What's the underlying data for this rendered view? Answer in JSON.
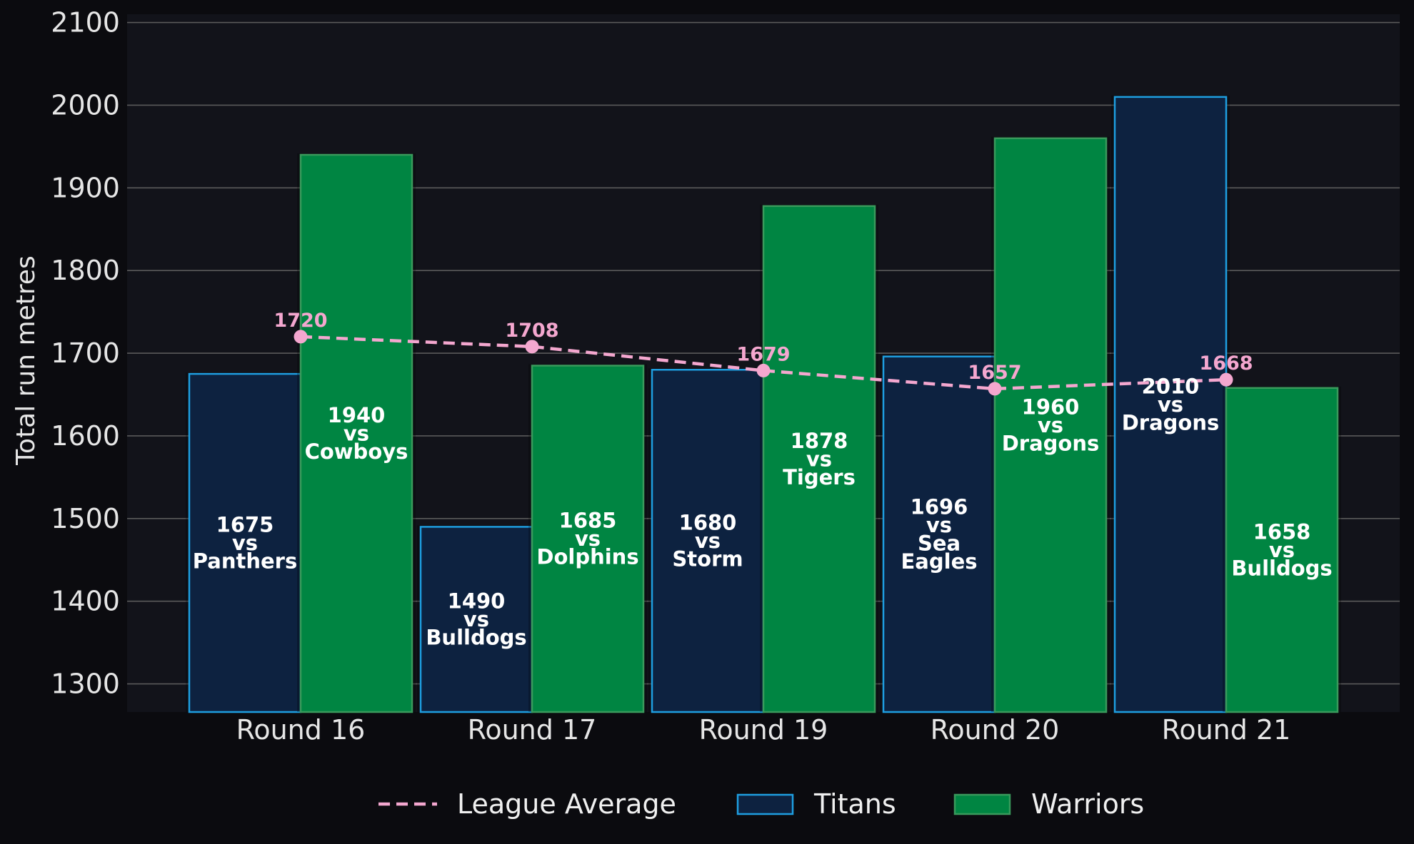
{
  "chart_data": {
    "type": "bar",
    "title": "",
    "xlabel": "",
    "ylabel": "Total run metres",
    "ylim": [
      1266,
      2110
    ],
    "yticks": [
      1300,
      1400,
      1500,
      1600,
      1700,
      1800,
      1900,
      2000,
      2100
    ],
    "grid": true,
    "legend_position": "bottom",
    "categories": [
      "Round 16",
      "Round 17",
      "Round 19",
      "Round 20",
      "Round 21"
    ],
    "series": [
      {
        "name": "Titans",
        "type": "bar",
        "values": [
          1675,
          1490,
          1680,
          1696,
          2010
        ],
        "labels": [
          [
            "1675",
            "vs",
            "Panthers"
          ],
          [
            "1490",
            "vs",
            "Bulldogs"
          ],
          [
            "1680",
            "vs",
            "Storm"
          ],
          [
            "1696",
            "vs",
            "Sea",
            "Eagles"
          ],
          [
            "2010",
            "vs",
            "Dragons"
          ]
        ]
      },
      {
        "name": "Warriors",
        "type": "bar",
        "values": [
          1940,
          1685,
          1878,
          1960,
          1658
        ],
        "labels": [
          [
            "1940",
            "vs",
            "Cowboys"
          ],
          [
            "1685",
            "vs",
            "Dolphins"
          ],
          [
            "1878",
            "vs",
            "Tigers"
          ],
          [
            "1960",
            "vs",
            "Dragons"
          ],
          [
            "1658",
            "vs",
            "Bulldogs"
          ]
        ]
      },
      {
        "name": "League Average",
        "type": "line",
        "values": [
          1720,
          1708,
          1679,
          1657,
          1668
        ],
        "labels": [
          "1720",
          "1708",
          "1679",
          "1657",
          "1668"
        ]
      }
    ]
  },
  "colors": {
    "background": "#0b0b0f",
    "plot_background": "#12131a",
    "grid": "#5a5a5a",
    "titans_fill": "#0d2240",
    "titans_edge": "#1e9ee0",
    "warriors_fill": "#008542",
    "warriors_edge": "#3a9a5c",
    "average": "#f4a7cf"
  }
}
